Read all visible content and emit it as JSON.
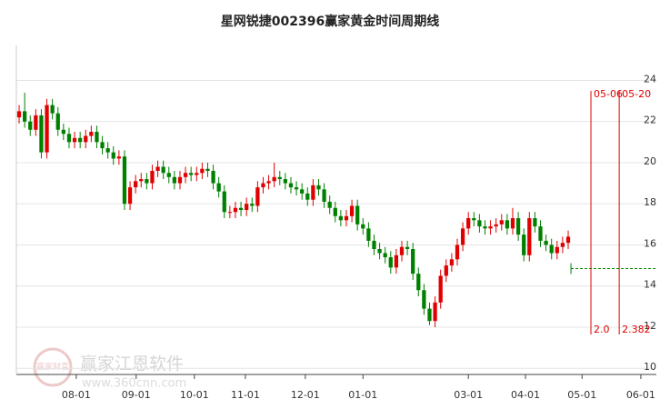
{
  "chart_data": {
    "type": "candlestick",
    "title": "星网锐捷002396赢家黄金时间周期线",
    "up_color": "#e00000",
    "down_color": "#008000",
    "grid": true,
    "open": [
      22.2,
      22.5,
      22.0,
      21.6,
      22.3,
      20.5,
      22.8,
      22.4,
      21.6,
      21.4,
      21.0,
      21.2,
      21.0,
      21.3,
      21.5,
      21.0,
      20.7,
      20.5,
      20.2,
      20.3,
      18.0,
      18.8,
      19.1,
      19.2,
      19.0,
      19.6,
      19.8,
      19.5,
      19.3,
      19.0,
      19.3,
      19.5,
      19.4,
      19.5,
      19.7,
      19.6,
      19.0,
      18.6,
      17.6,
      17.6,
      17.8,
      17.7,
      18.0,
      17.9,
      18.8,
      19.0,
      19.1,
      19.3,
      19.2,
      19.0,
      18.8,
      18.7,
      18.5,
      18.2,
      18.9,
      18.7,
      18.1,
      17.8,
      17.4,
      17.2,
      17.4,
      17.9,
      17.0,
      16.8,
      16.2,
      15.8,
      15.6,
      15.4,
      14.9,
      15.5,
      15.9,
      15.8,
      14.6,
      13.8,
      12.9,
      12.3,
      13.2,
      14.5,
      15.0,
      15.3,
      16.0,
      16.8,
      17.3,
      17.2,
      16.9,
      16.8,
      16.9,
      17.0,
      17.2,
      16.8,
      17.3,
      16.5,
      15.5,
      17.3,
      16.9,
      16.2,
      16.0,
      15.6,
      15.9,
      16.1
    ],
    "high": [
      22.8,
      23.4,
      22.3,
      22.6,
      22.6,
      23.1,
      23.1,
      22.7,
      21.9,
      21.7,
      21.5,
      21.5,
      21.6,
      21.8,
      21.8,
      21.3,
      21.0,
      20.8,
      20.6,
      20.6,
      19.1,
      19.4,
      19.5,
      19.5,
      19.9,
      20.1,
      20.1,
      19.8,
      19.6,
      19.6,
      19.8,
      19.8,
      19.8,
      20.0,
      20.0,
      19.9,
      19.3,
      18.9,
      17.9,
      18.1,
      18.1,
      18.3,
      18.3,
      19.1,
      19.3,
      19.4,
      20.0,
      19.6,
      19.5,
      19.3,
      19.1,
      19.0,
      18.8,
      19.2,
      19.2,
      19.0,
      18.4,
      18.1,
      17.7,
      17.7,
      18.2,
      18.2,
      17.3,
      17.1,
      16.5,
      16.1,
      15.9,
      15.7,
      15.8,
      16.2,
      16.2,
      16.1,
      14.9,
      14.1,
      13.2,
      13.5,
      14.8,
      15.3,
      15.6,
      16.3,
      17.1,
      17.6,
      17.6,
      17.5,
      17.2,
      17.2,
      17.3,
      17.5,
      17.5,
      17.8,
      17.6,
      16.8,
      17.6,
      17.6,
      17.2,
      16.5,
      16.3,
      16.2,
      16.4,
      16.7
    ],
    "low": [
      21.9,
      21.7,
      21.3,
      21.3,
      20.2,
      20.2,
      22.1,
      21.3,
      21.1,
      20.7,
      20.7,
      20.7,
      20.7,
      21.0,
      20.7,
      20.4,
      20.2,
      19.9,
      19.9,
      17.7,
      17.7,
      18.5,
      18.8,
      18.7,
      18.7,
      19.3,
      19.2,
      19.0,
      18.7,
      18.7,
      19.0,
      19.1,
      19.1,
      19.2,
      19.3,
      18.7,
      18.3,
      17.3,
      17.3,
      17.3,
      17.4,
      17.4,
      17.6,
      17.6,
      18.5,
      18.7,
      18.8,
      18.9,
      18.7,
      18.5,
      18.4,
      18.2,
      17.9,
      17.9,
      18.4,
      17.8,
      17.5,
      17.1,
      16.9,
      16.9,
      17.1,
      16.7,
      16.5,
      15.9,
      15.5,
      15.3,
      15.1,
      14.6,
      14.6,
      15.2,
      15.5,
      14.3,
      13.5,
      12.6,
      12.1,
      12.0,
      12.9,
      14.2,
      14.7,
      15.0,
      15.7,
      16.5,
      16.9,
      16.6,
      16.5,
      16.5,
      16.6,
      16.7,
      16.5,
      16.5,
      16.2,
      15.2,
      15.2,
      16.6,
      15.9,
      15.7,
      15.3,
      15.3,
      15.6,
      15.8
    ],
    "close": [
      22.5,
      22.0,
      21.6,
      22.3,
      20.5,
      22.8,
      22.4,
      21.6,
      21.4,
      21.0,
      21.2,
      21.0,
      21.3,
      21.5,
      21.0,
      20.7,
      20.5,
      20.2,
      20.3,
      18.0,
      18.8,
      19.1,
      19.2,
      19.0,
      19.6,
      19.8,
      19.5,
      19.3,
      19.0,
      19.3,
      19.5,
      19.4,
      19.5,
      19.7,
      19.6,
      19.0,
      18.6,
      17.6,
      17.6,
      17.8,
      17.7,
      18.0,
      17.9,
      18.8,
      19.0,
      19.1,
      19.3,
      19.2,
      19.0,
      18.8,
      18.7,
      18.5,
      18.2,
      18.9,
      18.7,
      18.1,
      17.8,
      17.4,
      17.2,
      17.4,
      17.9,
      17.0,
      16.8,
      16.2,
      15.8,
      15.6,
      15.4,
      14.9,
      15.5,
      15.9,
      15.8,
      14.6,
      13.8,
      12.9,
      12.3,
      13.2,
      14.5,
      15.0,
      15.3,
      16.0,
      16.8,
      17.3,
      17.2,
      16.9,
      16.8,
      16.9,
      17.0,
      17.2,
      16.8,
      17.3,
      16.5,
      15.5,
      17.3,
      16.9,
      16.2,
      16.0,
      15.6,
      15.9,
      16.1,
      16.4
    ],
    "xlim": [
      -0.5,
      114.9
    ],
    "xticks": [
      {
        "value": 10.3,
        "label": "08-01"
      },
      {
        "value": 21.1,
        "label": "09-01"
      },
      {
        "value": 31.6,
        "label": "10-01"
      },
      {
        "value": 40.8,
        "label": "11-01"
      },
      {
        "value": 51.6,
        "label": "12-01"
      },
      {
        "value": 62.0,
        "label": "01-01"
      },
      {
        "value": 81.0,
        "label": "03-01"
      },
      {
        "value": 91.3,
        "label": "04-01"
      },
      {
        "value": 101.5,
        "label": "05-01"
      },
      {
        "value": 112.1,
        "label": "06-01"
      }
    ],
    "ylim": [
      9.7,
      25.7
    ],
    "yticks": [
      10,
      12,
      14,
      16,
      18,
      20,
      22,
      24
    ],
    "cycle_lines": [
      {
        "x": 103.1,
        "date": "05-06",
        "ratio": "2.0",
        "color": "#e00000"
      },
      {
        "x": 108.2,
        "date": "05-20",
        "ratio": "2.382",
        "color": "#e00000"
      }
    ],
    "support_line": {
      "value": 14.85,
      "from_x": 99.5,
      "color": "#008000"
    },
    "watermark": {
      "logo": "赢家财富",
      "name": "赢家江恩软件",
      "url": "www.360cnn.com"
    }
  }
}
